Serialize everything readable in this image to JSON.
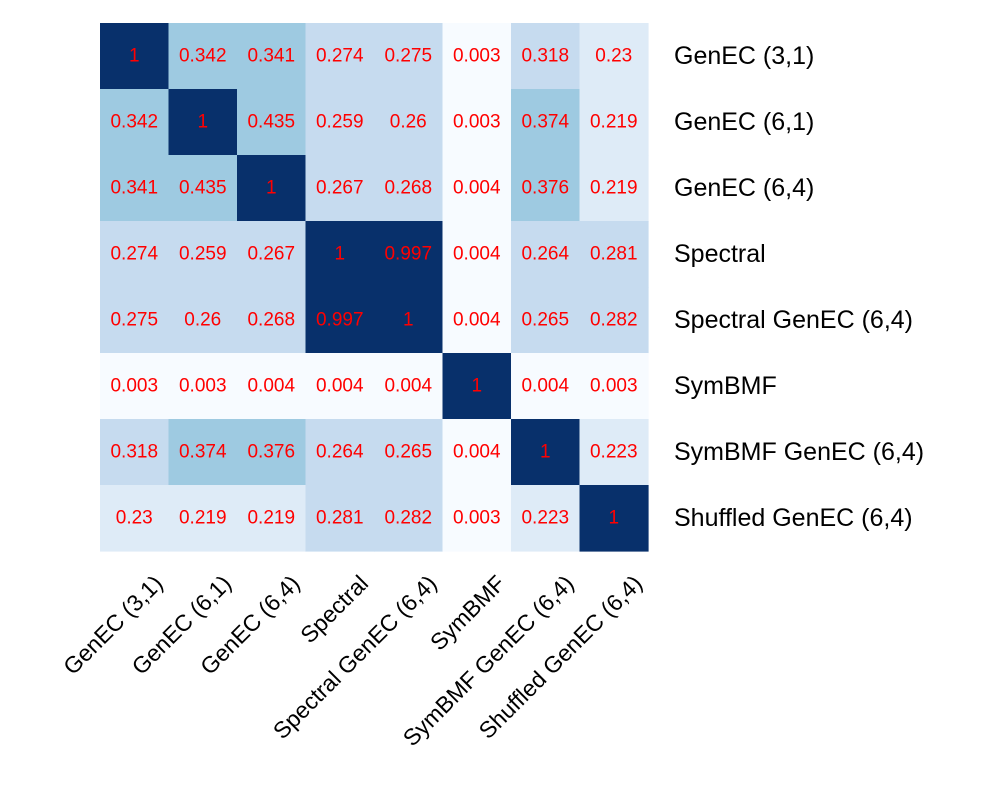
{
  "chart_data": {
    "type": "heatmap",
    "rows": [
      "GenEC (3,1)",
      "GenEC (6,1)",
      "GenEC (6,4)",
      "Spectral",
      "Spectral GenEC (6,4)",
      "SymBMF",
      "SymBMF GenEC (6,4)",
      "Shuffled GenEC (6,4)"
    ],
    "columns": [
      "GenEC (3,1)",
      "GenEC (6,1)",
      "GenEC (6,4)",
      "Spectral",
      "Spectral GenEC (6,4)",
      "SymBMF",
      "SymBMF GenEC (6,4)",
      "Shuffled GenEC (6,4)"
    ],
    "values": [
      [
        1,
        0.342,
        0.341,
        0.274,
        0.275,
        0.003,
        0.318,
        0.23
      ],
      [
        0.342,
        1,
        0.435,
        0.259,
        0.26,
        0.003,
        0.374,
        0.219
      ],
      [
        0.341,
        0.435,
        1,
        0.267,
        0.268,
        0.004,
        0.376,
        0.219
      ],
      [
        0.274,
        0.259,
        0.267,
        1,
        0.997,
        0.004,
        0.264,
        0.281
      ],
      [
        0.275,
        0.26,
        0.268,
        0.997,
        1,
        0.004,
        0.265,
        0.282
      ],
      [
        0.003,
        0.003,
        0.004,
        0.004,
        0.004,
        1,
        0.004,
        0.003
      ],
      [
        0.318,
        0.374,
        0.376,
        0.264,
        0.265,
        0.004,
        1,
        0.223
      ],
      [
        0.23,
        0.219,
        0.219,
        0.281,
        0.282,
        0.003,
        0.223,
        1
      ]
    ],
    "color_scale": {
      "palette": "Blues",
      "bins": [
        {
          "min": 0.0,
          "max": 0.1,
          "color": "#f7fbff"
        },
        {
          "min": 0.1,
          "max": 0.25,
          "color": "#deebf7"
        },
        {
          "min": 0.25,
          "max": 0.33,
          "color": "#c6dbef"
        },
        {
          "min": 0.33,
          "max": 0.6,
          "color": "#9ecae1"
        },
        {
          "min": 0.6,
          "max": 1.0,
          "color": "#08306b"
        }
      ]
    },
    "value_label_color": "#ff0000",
    "row_label_position": "right",
    "column_label_position": "bottom",
    "column_label_rotation_deg": -45,
    "legend": "none",
    "grid": false
  }
}
